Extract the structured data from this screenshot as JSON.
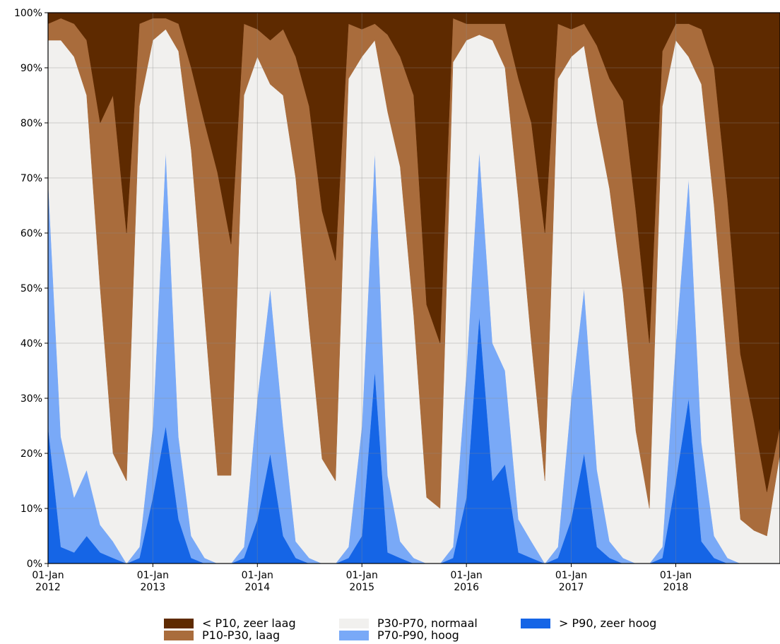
{
  "chart_data": {
    "type": "area",
    "stacked": true,
    "normalized": true,
    "x_unit": "date",
    "ylim": [
      0,
      100
    ],
    "y_tick_labels": [
      "0%",
      "10%",
      "20%",
      "30%",
      "40%",
      "50%",
      "60%",
      "70%",
      "80%",
      "90%",
      "100%"
    ],
    "x_ticks": [
      {
        "date": "2012-01-01",
        "day": "01-Jan",
        "year": "2012"
      },
      {
        "date": "2013-01-01",
        "day": "01-Jan",
        "year": "2013"
      },
      {
        "date": "2014-01-01",
        "day": "01-Jan",
        "year": "2014"
      },
      {
        "date": "2015-01-01",
        "day": "01-Jan",
        "year": "2015"
      },
      {
        "date": "2016-01-01",
        "day": "01-Jan",
        "year": "2016"
      },
      {
        "date": "2017-01-01",
        "day": "01-Jan",
        "year": "2017"
      },
      {
        "date": "2018-01-01",
        "day": "01-Jan",
        "year": "2018"
      }
    ],
    "xlim": [
      "2012-01-01",
      "2018-12-31"
    ],
    "grid": true,
    "legend_position": "bottom",
    "x": [
      "2012-01-01",
      "2012-02-15",
      "2012-04-01",
      "2012-05-15",
      "2012-07-01",
      "2012-08-15",
      "2012-10-01",
      "2012-11-15",
      "2013-01-01",
      "2013-02-15",
      "2013-04-01",
      "2013-05-15",
      "2013-07-01",
      "2013-08-15",
      "2013-10-01",
      "2013-11-15",
      "2014-01-01",
      "2014-02-15",
      "2014-04-01",
      "2014-05-15",
      "2014-07-01",
      "2014-08-15",
      "2014-10-01",
      "2014-11-15",
      "2015-01-01",
      "2015-02-15",
      "2015-04-01",
      "2015-05-15",
      "2015-07-01",
      "2015-08-15",
      "2015-10-01",
      "2015-11-15",
      "2016-01-01",
      "2016-02-15",
      "2016-04-01",
      "2016-05-15",
      "2016-07-01",
      "2016-08-15",
      "2016-10-01",
      "2016-11-15",
      "2017-01-01",
      "2017-02-15",
      "2017-04-01",
      "2017-05-15",
      "2017-07-01",
      "2017-08-15",
      "2017-10-01",
      "2017-11-15",
      "2018-01-01",
      "2018-02-15",
      "2018-04-01",
      "2018-05-15",
      "2018-07-01",
      "2018-08-15",
      "2018-10-01",
      "2018-11-15",
      "2018-12-31"
    ],
    "series": [
      {
        "name": "> P90, zeer hoog",
        "color": "#1565e6",
        "values": [
          25,
          3,
          2,
          5,
          2,
          1,
          0,
          1,
          12,
          25,
          8,
          1,
          0,
          0,
          0,
          1,
          8,
          20,
          5,
          1,
          0,
          0,
          0,
          1,
          5,
          35,
          2,
          1,
          0,
          0,
          0,
          1,
          12,
          45,
          15,
          18,
          2,
          1,
          0,
          1,
          8,
          20,
          3,
          1,
          0,
          0,
          0,
          1,
          15,
          30,
          4,
          1,
          0,
          0,
          0,
          0,
          0
        ]
      },
      {
        "name": "P70-P90, hoog",
        "color": "#79a9f7",
        "values": [
          45,
          20,
          10,
          12,
          5,
          3,
          0,
          2,
          13,
          50,
          15,
          4,
          1,
          0,
          0,
          2,
          22,
          30,
          20,
          3,
          1,
          0,
          0,
          2,
          20,
          40,
          14,
          3,
          1,
          0,
          0,
          2,
          23,
          30,
          25,
          17,
          6,
          3,
          0,
          2,
          22,
          30,
          14,
          3,
          1,
          0,
          0,
          2,
          25,
          40,
          18,
          4,
          1,
          0,
          0,
          0,
          0
        ]
      },
      {
        "name": "P30-P70, normaal",
        "color": "#f1f0ee",
        "values": [
          25,
          72,
          80,
          68,
          43,
          16,
          15,
          80,
          70,
          22,
          70,
          70,
          44,
          16,
          16,
          82,
          62,
          37,
          60,
          66,
          42,
          19,
          15,
          85,
          67,
          20,
          66,
          68,
          44,
          12,
          10,
          88,
          60,
          21,
          55,
          55,
          58,
          36,
          15,
          85,
          62,
          44,
          63,
          64,
          48,
          24,
          10,
          80,
          55,
          22,
          65,
          60,
          35,
          8,
          6,
          5,
          20
        ]
      },
      {
        "name": "P10-P30, laag",
        "color": "#a96c3c",
        "values": [
          3,
          4,
          6,
          10,
          30,
          65,
          45,
          15,
          4,
          2,
          5,
          15,
          35,
          55,
          42,
          13,
          5,
          8,
          12,
          22,
          40,
          45,
          40,
          10,
          5,
          3,
          14,
          20,
          40,
          35,
          30,
          8,
          3,
          2,
          3,
          8,
          22,
          40,
          45,
          10,
          5,
          4,
          14,
          20,
          35,
          40,
          30,
          10,
          3,
          6,
          10,
          25,
          30,
          30,
          20,
          8,
          5
        ]
      },
      {
        "name": "< P10, zeer laag",
        "color": "#5e2a00",
        "values": [
          2,
          1,
          2,
          5,
          20,
          15,
          40,
          2,
          1,
          1,
          2,
          10,
          20,
          29,
          42,
          2,
          3,
          5,
          3,
          8,
          17,
          36,
          45,
          2,
          3,
          2,
          4,
          8,
          15,
          53,
          60,
          1,
          2,
          2,
          2,
          2,
          12,
          20,
          40,
          2,
          3,
          2,
          6,
          12,
          16,
          36,
          60,
          7,
          2,
          2,
          3,
          10,
          34,
          62,
          74,
          87,
          75
        ]
      }
    ]
  }
}
